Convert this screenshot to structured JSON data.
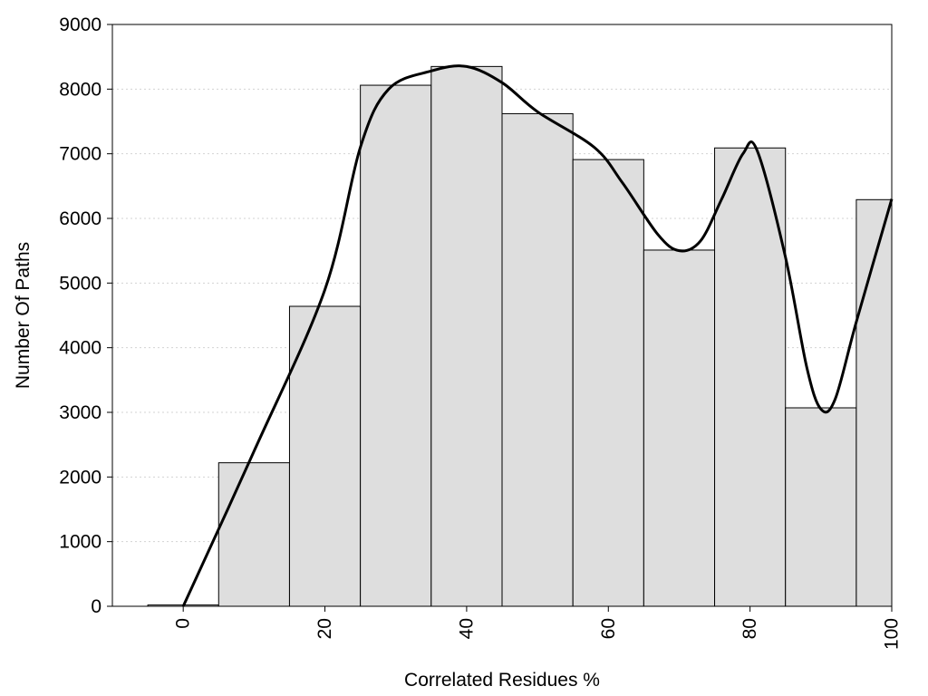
{
  "chart_data": {
    "type": "bar",
    "xlabel": "Correlated Residues %",
    "ylabel": "Number Of Paths",
    "xlim": [
      -10,
      100
    ],
    "ylim": [
      0,
      9000
    ],
    "grid": "horizontal, dotted",
    "x_ticks": [
      0,
      20,
      40,
      60,
      80,
      100
    ],
    "x_tick_labels": [
      "0",
      "20",
      "40",
      "60",
      "80",
      "100"
    ],
    "y_ticks": [
      0,
      1000,
      2000,
      3000,
      4000,
      5000,
      6000,
      7000,
      8000,
      9000
    ],
    "y_tick_labels": [
      "0",
      "1000",
      "2000",
      "3000",
      "4000",
      "5000",
      "6000",
      "7000",
      "8000",
      "9000"
    ],
    "bin_width": 10,
    "categories": [
      0,
      10,
      20,
      30,
      40,
      50,
      60,
      70,
      80,
      90,
      100
    ],
    "values": [
      20,
      2220,
      4640,
      8060,
      8350,
      7620,
      6910,
      5510,
      7090,
      3070,
      6290
    ],
    "curve": {
      "style": "smooth line",
      "x": [
        0,
        10,
        20,
        25,
        29,
        35,
        40,
        45,
        50,
        58,
        62,
        67,
        70,
        73,
        76,
        79,
        81,
        85,
        88,
        90,
        92,
        95,
        100
      ],
      "y": [
        0,
        2400,
        4900,
        7100,
        8000,
        8280,
        8350,
        8100,
        7650,
        7100,
        6550,
        5750,
        5500,
        5650,
        6300,
        7000,
        7050,
        5400,
        3700,
        3050,
        3200,
        4400,
        6300
      ]
    },
    "colors": {
      "bar_fill": "#dedede",
      "bar_stroke": "#000000",
      "curve": "#000000",
      "grid": "#d3d3d3"
    }
  }
}
